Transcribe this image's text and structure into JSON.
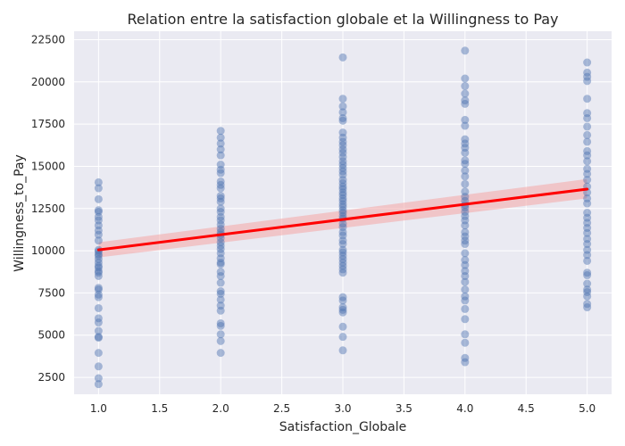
{
  "chart_data": {
    "type": "scatter",
    "title": "Relation entre la satisfaction globale et la Willingness to Pay",
    "xlabel": "Satisfaction_Globale",
    "ylabel": "Willingness_to_Pay",
    "xlim": [
      0.8,
      5.2
    ],
    "ylim": [
      1500,
      23000
    ],
    "x_ticks": [
      1.0,
      1.5,
      2.0,
      2.5,
      3.0,
      3.5,
      4.0,
      4.5,
      5.0
    ],
    "x_tick_labels": [
      "1.0",
      "1.5",
      "2.0",
      "2.5",
      "3.0",
      "3.5",
      "4.0",
      "4.5",
      "5.0"
    ],
    "y_ticks": [
      2500,
      5000,
      7500,
      10000,
      12500,
      15000,
      17500,
      20000,
      22500
    ],
    "y_tick_labels": [
      "2500",
      "5000",
      "7500",
      "10000",
      "12500",
      "15000",
      "17500",
      "20000",
      "22500"
    ],
    "grid": true,
    "background_color": "#eaeaf2",
    "point_color": "#4c72b0",
    "line_color": "#ff0000",
    "ci_color": "#f4a6a6",
    "points": [
      {
        "x": 1.0,
        "values": [
          2100,
          2450,
          3150,
          3950,
          4850,
          4900,
          5250,
          5750,
          6000,
          6600,
          7250,
          7400,
          7700,
          7800,
          8500,
          8700,
          8800,
          9000,
          9100,
          9300,
          9500,
          9700,
          9800,
          9950,
          10050,
          10600,
          10950,
          11200,
          11500,
          11800,
          12000,
          12300,
          12400,
          13050,
          13700,
          14050
        ]
      },
      {
        "x": 2.0,
        "values": [
          3950,
          4650,
          5050,
          5550,
          5700,
          6450,
          6750,
          7100,
          7450,
          7600,
          8100,
          8500,
          8750,
          9200,
          9300,
          9550,
          9850,
          10100,
          10300,
          10500,
          10750,
          10950,
          11100,
          11300,
          11550,
          11800,
          12000,
          12300,
          12500,
          12900,
          13100,
          13250,
          13700,
          13900,
          14100,
          14600,
          14800,
          15100,
          15650,
          16000,
          16350,
          16700,
          17100
        ]
      },
      {
        "x": 3.0,
        "values": [
          4100,
          4900,
          5500,
          6350,
          6500,
          6650,
          7050,
          7250,
          8700,
          8900,
          9100,
          9300,
          9500,
          9700,
          9900,
          10050,
          10400,
          10600,
          10900,
          11100,
          11400,
          11600,
          11900,
          12050,
          12250,
          12400,
          12600,
          12750,
          12950,
          13100,
          13300,
          13450,
          13650,
          13800,
          14000,
          14200,
          14500,
          14700,
          14900,
          15100,
          15300,
          15550,
          15800,
          16000,
          16250,
          16450,
          16700,
          17000,
          17700,
          17850,
          18200,
          18550,
          19000,
          21450
        ]
      },
      {
        "x": 4.0,
        "values": [
          3400,
          3650,
          4550,
          5050,
          5950,
          6550,
          7050,
          7300,
          7700,
          8150,
          8500,
          8800,
          9150,
          9450,
          9850,
          10400,
          10600,
          10850,
          11100,
          11500,
          11800,
          12050,
          12300,
          12550,
          12700,
          12950,
          13200,
          13500,
          13950,
          14400,
          14750,
          15150,
          15350,
          15800,
          16100,
          16350,
          16600,
          17400,
          17750,
          18700,
          18900,
          19300,
          19750,
          20200,
          21850
        ]
      },
      {
        "x": 5.0,
        "values": [
          6650,
          6850,
          7300,
          7550,
          7700,
          8050,
          8550,
          8700,
          9400,
          9750,
          10050,
          10400,
          10700,
          11050,
          11350,
          11650,
          11950,
          12250,
          12800,
          13100,
          13450,
          13800,
          14200,
          14550,
          14850,
          15300,
          15650,
          15900,
          16450,
          16850,
          17350,
          17850,
          18150,
          19000,
          20050,
          20300,
          20550,
          21150
        ]
      }
    ],
    "regression": {
      "x": [
        1.0,
        5.0
      ],
      "y": [
        10050,
        13650
      ],
      "ci_lower": [
        9600,
        13100
      ],
      "ci_upper": [
        10500,
        14250
      ]
    }
  }
}
